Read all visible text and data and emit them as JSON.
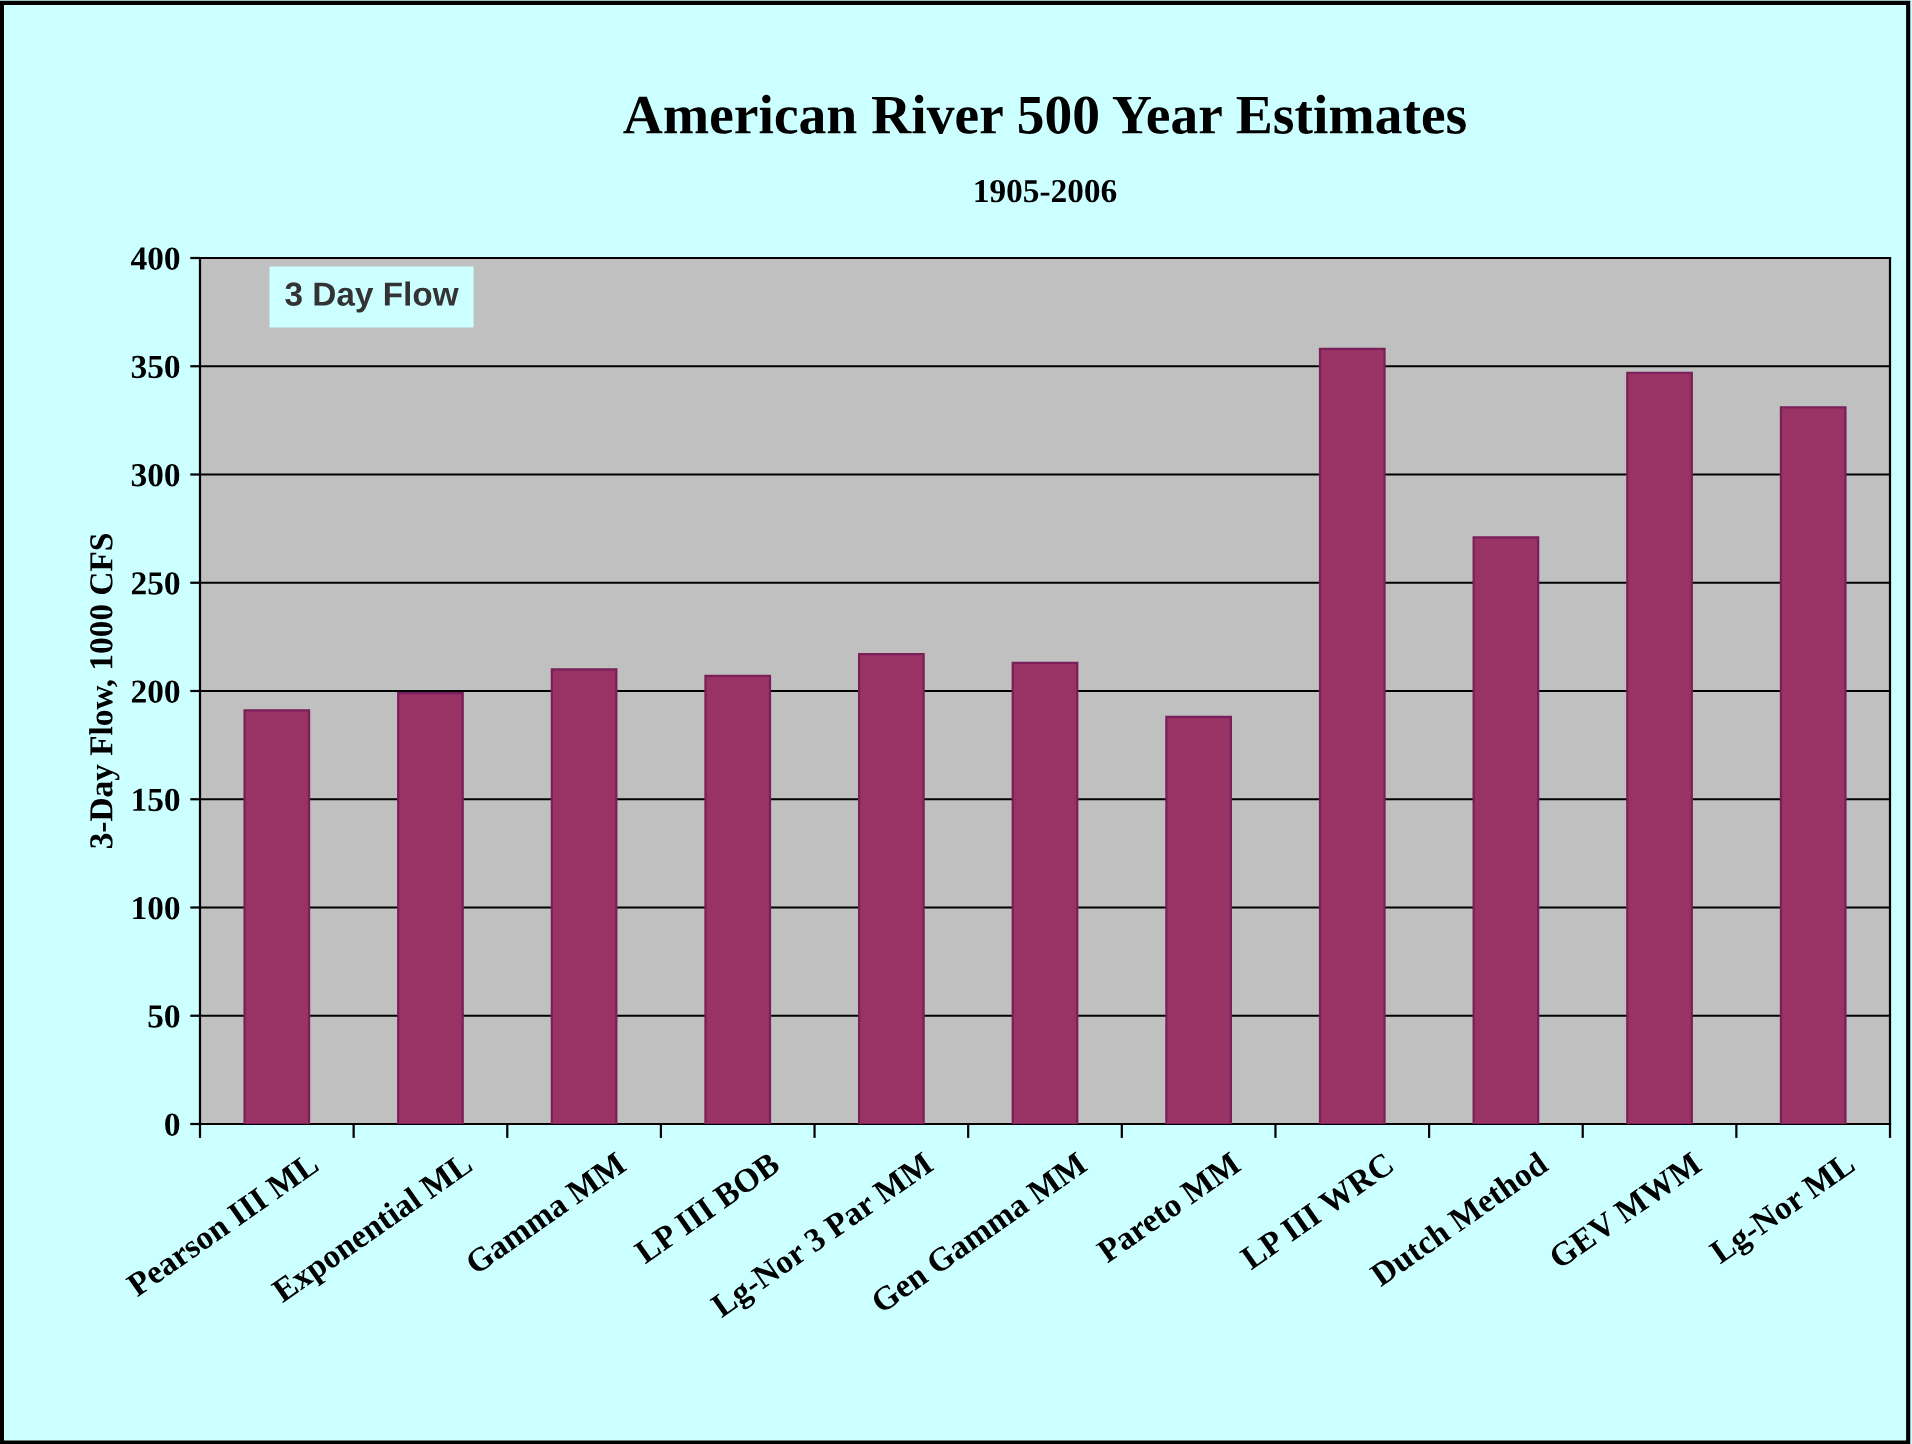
{
  "chart_data": {
    "type": "bar",
    "title": "American River 500 Year Estimates",
    "subtitle": "1905-2006",
    "ylabel": "3-Day Flow, 1000 CFS",
    "categories": [
      "Pearson III ML",
      "Exponential ML",
      "Gamma MM",
      "LP III BOB",
      "Lg-Nor 3 Par MM",
      "Gen Gamma MM",
      "Pareto MM",
      "LP III WRC",
      "Dutch Method",
      "GEV MWM",
      "Lg-Nor ML"
    ],
    "values": [
      191,
      199,
      210,
      207,
      217,
      213,
      188,
      358,
      271,
      347,
      331
    ],
    "color": "#993366",
    "ylim": [
      0,
      400
    ],
    "yticks": [
      0,
      50,
      100,
      150,
      200,
      250,
      300,
      350,
      400
    ],
    "grid": "y",
    "annotations": [
      "3 Day Flow"
    ]
  }
}
